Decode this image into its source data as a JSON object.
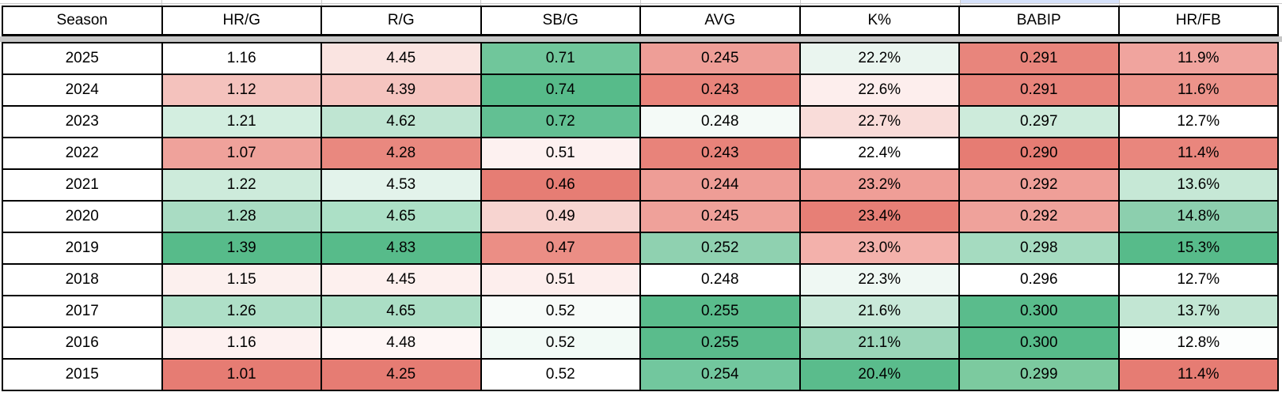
{
  "decor": {
    "divider_color": "#c7c7c7",
    "selection_color": "#d6e2fb",
    "gridline_color": "#c9c9c9",
    "border_color": "#000000",
    "scale_min_color": "#e67c73",
    "scale_mid_color": "#ffffff",
    "scale_max_color": "#57bb8a"
  },
  "table": {
    "columns": [
      "Season",
      "HR/G",
      "R/G",
      "SB/G",
      "AVG",
      "K%",
      "BABIP",
      "HR/FB"
    ],
    "rows": [
      {
        "season": "2025",
        "values": [
          "1.16",
          "4.45",
          "0.71",
          "0.245",
          "22.2%",
          "0.291",
          "11.9%"
        ],
        "colors": [
          "#ffffff",
          "#fae4e1",
          "#70c69b",
          "#ee9e97",
          "#eaf5ef",
          "#e8857c",
          "#f0a49e"
        ]
      },
      {
        "season": "2024",
        "values": [
          "1.12",
          "4.39",
          "0.74",
          "0.243",
          "22.6%",
          "0.291",
          "11.6%"
        ],
        "colors": [
          "#f4c2bd",
          "#f5c4bf",
          "#57bb8a",
          "#e9847b",
          "#fdeeed",
          "#e8847b",
          "#ec938a"
        ]
      },
      {
        "season": "2023",
        "values": [
          "1.21",
          "4.62",
          "0.72",
          "0.248",
          "22.7%",
          "0.297",
          "12.7%"
        ],
        "colors": [
          "#d3eee0",
          "#bfe5d2",
          "#62c093",
          "#f4faf7",
          "#f9dcd9",
          "#cdebdb",
          "#ffffff"
        ]
      },
      {
        "season": "2022",
        "values": [
          "1.07",
          "4.28",
          "0.51",
          "0.243",
          "22.4%",
          "0.290",
          "11.4%"
        ],
        "colors": [
          "#efa29b",
          "#e9887f",
          "#fdf1f0",
          "#e8837a",
          "#ffffff",
          "#e67c73",
          "#e9867d"
        ]
      },
      {
        "season": "2021",
        "values": [
          "1.22",
          "4.53",
          "0.46",
          "0.244",
          "23.2%",
          "0.292",
          "13.6%"
        ],
        "colors": [
          "#cdebdb",
          "#e3f3eb",
          "#e67d74",
          "#ee9d96",
          "#ef9e97",
          "#ef9f98",
          "#c6e8d6"
        ]
      },
      {
        "season": "2020",
        "values": [
          "1.28",
          "4.65",
          "0.49",
          "0.245",
          "23.4%",
          "0.292",
          "14.8%"
        ],
        "colors": [
          "#a9dcc3",
          "#ace0c6",
          "#f7d4d0",
          "#efa19a",
          "#e77f76",
          "#efa29b",
          "#8ccfae"
        ]
      },
      {
        "season": "2019",
        "values": [
          "1.39",
          "4.83",
          "0.47",
          "0.252",
          "23.0%",
          "0.298",
          "15.3%"
        ],
        "colors": [
          "#57bb8a",
          "#57bb8a",
          "#eb8e85",
          "#8fd1b0",
          "#f3b1ab",
          "#a5dbc0",
          "#57bb8a"
        ]
      },
      {
        "season": "2018",
        "values": [
          "1.15",
          "4.45",
          "0.51",
          "0.248",
          "22.3%",
          "0.296",
          "12.7%"
        ],
        "colors": [
          "#fcf0ee",
          "#fdf0ee",
          "#fdeeed",
          "#ffffff",
          "#eff8f3",
          "#ffffff",
          "#ffffff"
        ]
      },
      {
        "season": "2017",
        "values": [
          "1.26",
          "4.65",
          "0.52",
          "0.255",
          "21.6%",
          "0.300",
          "13.7%"
        ],
        "colors": [
          "#aedfc7",
          "#abdec5",
          "#f7fbf9",
          "#5abc8c",
          "#c9e9d9",
          "#5abc8c",
          "#c2e6d3"
        ]
      },
      {
        "season": "2016",
        "values": [
          "1.16",
          "4.48",
          "0.52",
          "0.255",
          "21.1%",
          "0.300",
          "12.8%"
        ],
        "colors": [
          "#fdf1f0",
          "#fef6f5",
          "#f2faf6",
          "#5abc8c",
          "#9bd6b9",
          "#57bb8a",
          "#fcfefd"
        ]
      },
      {
        "season": "2015",
        "values": [
          "1.01",
          "4.25",
          "0.52",
          "0.254",
          "20.4%",
          "0.299",
          "11.4%"
        ],
        "colors": [
          "#e67c73",
          "#e67c73",
          "#ffffff",
          "#72c79e",
          "#5abc8c",
          "#7cca9f",
          "#e67c73"
        ]
      }
    ]
  }
}
